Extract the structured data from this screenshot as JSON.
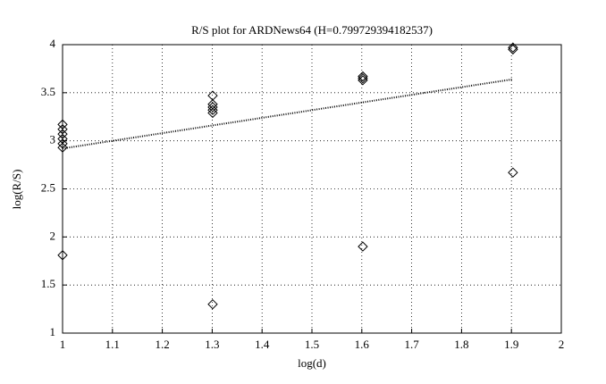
{
  "chart_data": {
    "type": "scatter",
    "title": "R/S plot for ARDNews64 (H=0.799729394182537)",
    "x_label": "log(d)",
    "y_label": "log(R/S)",
    "series": [
      {
        "type": "scatter",
        "color": "#000000",
        "x": [
          1,
          1,
          1,
          1,
          1,
          1,
          1,
          1.301,
          1.301,
          1.301,
          1.301,
          1.301,
          1.301,
          1.602,
          1.602,
          1.602,
          1.602,
          1.903,
          1.903,
          1.903
        ],
        "values": [
          3.17,
          3.12,
          3.07,
          3.02,
          2.97,
          2.93,
          1.81,
          3.47,
          3.38,
          3.35,
          3.32,
          3.29,
          1.3,
          3.67,
          3.65,
          3.63,
          1.9,
          3.97,
          3.95,
          2.67
        ]
      },
      {
        "type": "line",
        "color": "#000000",
        "x": [
          1,
          1.903
        ],
        "values": [
          2.92,
          3.64
        ]
      }
    ],
    "xlim": [
      1,
      2
    ],
    "xticks": [
      1,
      1.1,
      1.2,
      1.3,
      1.4,
      1.5,
      1.6,
      1.7,
      1.8,
      1.9,
      2
    ],
    "ylim": [
      1,
      4
    ],
    "yticks": [
      1,
      1.5,
      2,
      2.5,
      3,
      3.5,
      4
    ],
    "grid": true
  }
}
